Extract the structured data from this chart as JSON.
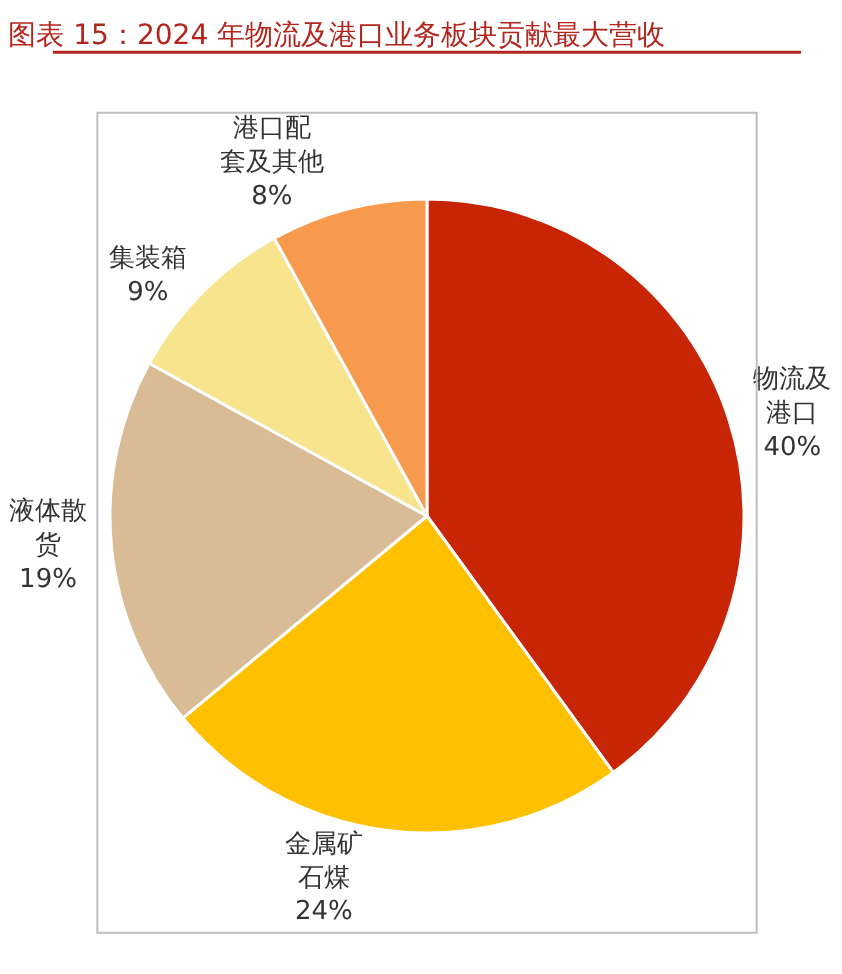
{
  "chart_data": {
    "type": "pie",
    "title": "图表 15：2024 年物流及港口业务板块贡献最大营收",
    "categories": [
      "物流及港口",
      "金属矿石煤",
      "液体散货",
      "集装箱",
      "港口配套及其他"
    ],
    "values": [
      40,
      24,
      19,
      9,
      8
    ],
    "value_labels": [
      "40%",
      "24%",
      "19%",
      "9%",
      "8%"
    ],
    "colors": [
      "#c82506",
      "#ffc000",
      "#d9bc96",
      "#f7e48c",
      "#f79a4e"
    ],
    "legend": false
  }
}
